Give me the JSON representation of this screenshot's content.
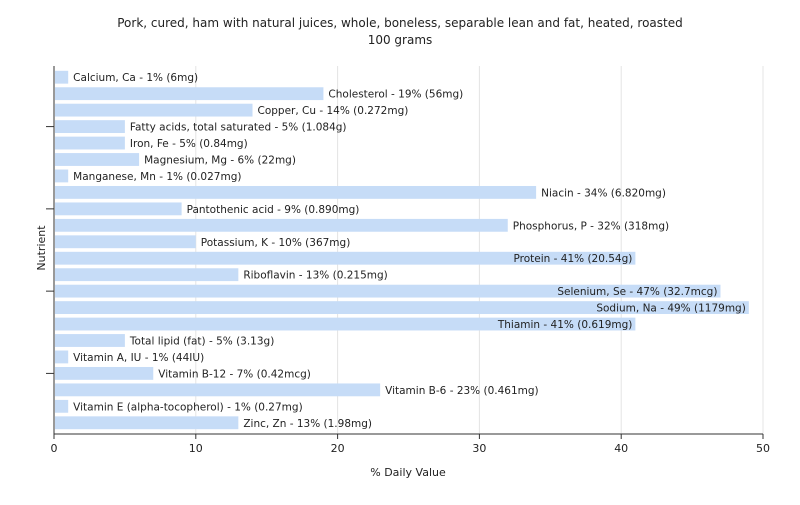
{
  "chart_data": {
    "type": "bar",
    "orientation": "horizontal",
    "title": "Pork, cured, ham with natural juices, whole, boneless, separable lean and fat, heated, roasted",
    "subtitle": "100 grams",
    "xlabel": "% Daily Value",
    "ylabel": "Nutrient",
    "xlim": [
      0,
      50
    ],
    "xticks": [
      "0",
      "10",
      "20",
      "30",
      "40",
      "50"
    ],
    "grid": true,
    "bar_color": "#c6dcf7",
    "categories": [
      "Calcium, Ca",
      "Cholesterol",
      "Copper, Cu",
      "Fatty acids, total saturated",
      "Iron, Fe",
      "Magnesium, Mg",
      "Manganese, Mn",
      "Niacin",
      "Pantothenic acid",
      "Phosphorus, P",
      "Potassium, K",
      "Protein",
      "Riboflavin",
      "Selenium, Se",
      "Sodium, Na",
      "Thiamin",
      "Total lipid (fat)",
      "Vitamin A, IU",
      "Vitamin B-12",
      "Vitamin B-6",
      "Vitamin E (alpha-tocopherol)",
      "Zinc, Zn"
    ],
    "values": [
      1,
      19,
      14,
      5,
      5,
      6,
      1,
      34,
      9,
      32,
      10,
      41,
      13,
      47,
      49,
      41,
      5,
      1,
      7,
      23,
      1,
      13
    ],
    "labels": [
      "Calcium, Ca - 1% (6mg)",
      "Cholesterol - 19% (56mg)",
      "Copper, Cu - 14% (0.272mg)",
      "Fatty acids, total saturated - 5% (1.084g)",
      "Iron, Fe - 5% (0.84mg)",
      "Magnesium, Mg - 6% (22mg)",
      "Manganese, Mn - 1% (0.027mg)",
      "Niacin - 34% (6.820mg)",
      "Pantothenic acid - 9% (0.890mg)",
      "Phosphorus, P - 32% (318mg)",
      "Potassium, K - 10% (367mg)",
      "Protein - 41% (20.54g)",
      "Riboflavin - 13% (0.215mg)",
      "Selenium, Se - 47% (32.7mcg)",
      "Sodium, Na - 49% (1179mg)",
      "Thiamin - 41% (0.619mg)",
      "Total lipid (fat) - 5% (3.13g)",
      "Vitamin A, IU - 1% (44IU)",
      "Vitamin B-12 - 7% (0.42mcg)",
      "Vitamin B-6 - 23% (0.461mg)",
      "Vitamin E (alpha-tocopherol) - 1% (0.27mg)",
      "Zinc, Zn - 13% (1.98mg)"
    ]
  }
}
